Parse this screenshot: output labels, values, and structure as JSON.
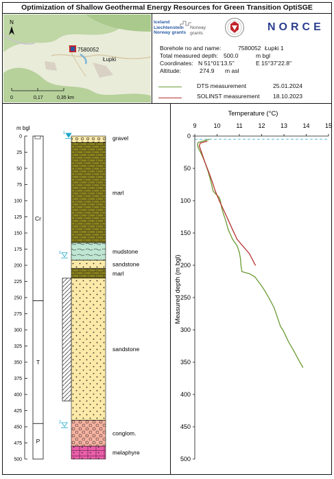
{
  "title": "Optimization of Shallow Geothermal Energy Resources for Green Transition OptiSGE",
  "map": {
    "north_label": "N",
    "borehole_label": "7580052",
    "town_label": "Łupki",
    "scale_labels": [
      "0",
      "0,17",
      "0,35 km"
    ]
  },
  "logos": {
    "grants_lines": [
      "Iceland",
      "Liechtenstein",
      "Norway grants"
    ],
    "grants_norway": [
      "Norway",
      "grants"
    ],
    "norce": "NORCE"
  },
  "borehole": {
    "name_label": "Borehole no and name:",
    "number": "7580052",
    "name": "Łupki 1",
    "depth_label": "Total measured depth:",
    "depth_value": "500.0",
    "depth_unit": "m bgl",
    "coord_label": "Coordinates:",
    "lat": "N 51°01'13.5''",
    "lon": "E 15°37'22.8''",
    "alt_label": "Altitude:",
    "alt_value": "274.9",
    "alt_unit": "m asl"
  },
  "legend": [
    {
      "name": "DTS measurement",
      "date": "25.01.2024",
      "color": "#6a9a32"
    },
    {
      "name": "SOLINST measurement",
      "date": "18.10.2023",
      "color": "#b5312e"
    }
  ],
  "log": {
    "depth_unit": "m bgl",
    "depth_ticks": [
      0,
      25,
      50,
      75,
      100,
      125,
      150,
      175,
      200,
      225,
      250,
      275,
      300,
      325,
      350,
      375,
      400,
      425,
      450,
      475,
      500
    ],
    "strat": [
      {
        "label": "Cr",
        "top": 0,
        "bottom": 255
      },
      {
        "label": "T",
        "top": 255,
        "bottom": 445
      },
      {
        "label": "P",
        "top": 445,
        "bottom": 500
      }
    ],
    "lithology": [
      {
        "label": "gravel",
        "top": 0,
        "bottom": 10,
        "pattern": "gravel"
      },
      {
        "label": "marl",
        "top": 10,
        "bottom": 165,
        "pattern": "marl"
      },
      {
        "label": "mudstone",
        "top": 165,
        "bottom": 192,
        "pattern": "mud"
      },
      {
        "label": "sandstone",
        "top": 192,
        "bottom": 205,
        "pattern": "sand"
      },
      {
        "label": "marl",
        "top": 205,
        "bottom": 220,
        "pattern": "marl"
      },
      {
        "label": "sandstone",
        "top": 220,
        "bottom": 440,
        "pattern": "sand"
      },
      {
        "label": "conglom.",
        "top": 440,
        "bottom": 480,
        "pattern": "cong"
      },
      {
        "label": "melaphyre",
        "top": 480,
        "bottom": 500,
        "pattern": "mela"
      }
    ],
    "casing": {
      "top": 220,
      "bottom": 410
    },
    "water_markers": [
      {
        "label": "1",
        "depth": 2
      },
      {
        "label": "1",
        "depth": 187
      },
      {
        "label": "2",
        "depth": 450
      }
    ]
  },
  "chart_data": {
    "type": "line",
    "xlabel": "Temperature (°C)",
    "ylabel": "Measured depth  (m bgl)",
    "xlim": [
      9,
      15
    ],
    "ylim": [
      0,
      500
    ],
    "x_ticks": [
      9,
      10,
      11,
      12,
      13,
      14,
      15
    ],
    "y_ticks": [
      0,
      50,
      100,
      150,
      200,
      250,
      300,
      350,
      400,
      450,
      500
    ],
    "water_level_depth": 5,
    "series": [
      {
        "name": "DTS measurement",
        "color": "#6a9a32",
        "points": [
          [
            9.65,
            5
          ],
          [
            9.35,
            8
          ],
          [
            9.15,
            10
          ],
          [
            9.12,
            13
          ],
          [
            9.15,
            18
          ],
          [
            9.3,
            28
          ],
          [
            9.45,
            40
          ],
          [
            9.6,
            55
          ],
          [
            9.72,
            70
          ],
          [
            9.82,
            85
          ],
          [
            9.95,
            90
          ],
          [
            10.1,
            95
          ],
          [
            10.15,
            100
          ],
          [
            10.2,
            110
          ],
          [
            10.28,
            120
          ],
          [
            10.38,
            130
          ],
          [
            10.5,
            145
          ],
          [
            10.7,
            160
          ],
          [
            10.9,
            170
          ],
          [
            11.0,
            180
          ],
          [
            11.05,
            190
          ],
          [
            11.07,
            200
          ],
          [
            11.12,
            210
          ],
          [
            11.45,
            213
          ],
          [
            11.7,
            218
          ],
          [
            11.85,
            225
          ],
          [
            12.0,
            232
          ],
          [
            12.15,
            240
          ],
          [
            12.35,
            252
          ],
          [
            12.55,
            265
          ],
          [
            12.7,
            280
          ],
          [
            12.85,
            295
          ],
          [
            12.95,
            300
          ],
          [
            13.2,
            318
          ],
          [
            13.45,
            333
          ],
          [
            13.65,
            346
          ],
          [
            13.85,
            358
          ]
        ]
      },
      {
        "name": "SOLINST measurement",
        "color": "#b5312e",
        "points": [
          [
            9.55,
            8
          ],
          [
            9.25,
            11
          ],
          [
            9.2,
            15
          ],
          [
            9.3,
            25
          ],
          [
            9.45,
            40
          ],
          [
            9.62,
            55
          ],
          [
            9.78,
            70
          ],
          [
            9.92,
            85
          ],
          [
            10.1,
            100
          ],
          [
            10.3,
            115
          ],
          [
            10.5,
            130
          ],
          [
            10.7,
            145
          ],
          [
            10.9,
            160
          ],
          [
            11.2,
            172
          ],
          [
            11.45,
            182
          ],
          [
            11.6,
            192
          ],
          [
            11.72,
            200
          ]
        ]
      }
    ]
  }
}
